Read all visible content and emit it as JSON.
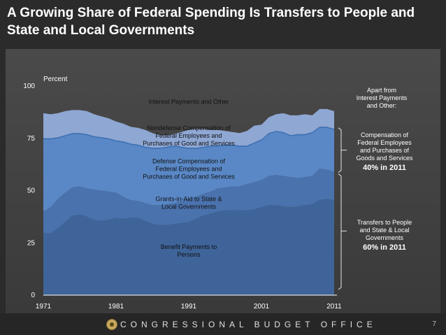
{
  "title": "A Growing Share of Federal Spending Is Transfers to People and State and Local Governments",
  "footer": {
    "org": "CONGRESSIONAL BUDGET OFFICE",
    "page": "7"
  },
  "colors": {
    "benefit": "#3f6499",
    "grants": "#4a72ad",
    "defense": "#5a88c6",
    "nondefense": "#3a74bf",
    "interest": "#8fa7d3",
    "background": "#2b2b2b"
  },
  "chart_data": {
    "type": "area",
    "stacked": true,
    "ylabel": "Percent",
    "ylim": [
      0,
      100
    ],
    "yticks": [
      0,
      25,
      50,
      75,
      100
    ],
    "xticks": [
      1971,
      1981,
      1991,
      2001,
      2011
    ],
    "x": [
      1971,
      1972,
      1973,
      1974,
      1975,
      1976,
      1977,
      1978,
      1979,
      1980,
      1981,
      1982,
      1983,
      1984,
      1985,
      1986,
      1987,
      1988,
      1989,
      1990,
      1991,
      1992,
      1993,
      1994,
      1995,
      1996,
      1997,
      1998,
      1999,
      2000,
      2001,
      2002,
      2003,
      2004,
      2005,
      2006,
      2007,
      2008,
      2009,
      2010,
      2011
    ],
    "series": [
      {
        "name": "Benefit Payments to Persons",
        "values": [
          29.5,
          29.5,
          32,
          35,
          38,
          38.5,
          37.5,
          36,
          35.5,
          36,
          37,
          36.5,
          37,
          37,
          35.5,
          34,
          33.5,
          33.5,
          34,
          34.5,
          35,
          36.5,
          38,
          39,
          40,
          40.5,
          40.5,
          40.5,
          40.5,
          41,
          42,
          43,
          43,
          42.5,
          42,
          42.5,
          43,
          43.5,
          45.5,
          46,
          45.5
        ]
      },
      {
        "name": "Grants-in-Aid to State & Local Governments",
        "values": [
          40,
          42,
          46,
          49,
          51.5,
          52,
          51,
          50.5,
          50,
          49.5,
          49,
          47,
          45.5,
          45,
          44,
          43,
          43,
          43.5,
          44,
          45,
          46,
          47,
          48.5,
          49.5,
          51,
          51.5,
          52,
          52,
          53,
          54,
          55,
          57,
          57.5,
          57,
          56.5,
          56,
          56.5,
          57,
          60.5,
          60,
          59
        ]
      },
      {
        "name": "Defense Compensation of Federal Employees and Purchases of Good and Services",
        "values": [
          74.5,
          74.5,
          75,
          76,
          77,
          77,
          76.5,
          75.5,
          75,
          74.5,
          73.5,
          73,
          72,
          71.5,
          70.5,
          70,
          70,
          70.5,
          71,
          70.5,
          70,
          70,
          70.5,
          71,
          71,
          71.5,
          71.5,
          71,
          71,
          72.5,
          74,
          77,
          78,
          77.5,
          76,
          76.5,
          76.5,
          77.5,
          80,
          80,
          79
        ]
      },
      {
        "name": "Nondefense Compensation of Federal Employees and Purchases of Good and Services",
        "values": [
          75,
          75,
          75.5,
          76.5,
          77.5,
          77.5,
          77,
          76,
          75.5,
          75,
          74,
          73.5,
          72.5,
          72,
          71,
          70.5,
          70.5,
          71,
          71.5,
          71,
          70.5,
          70.5,
          71,
          71.5,
          71.5,
          72,
          72,
          71.5,
          71.5,
          73,
          74.5,
          77.5,
          78.5,
          78,
          76.5,
          77,
          77,
          78,
          80.5,
          80.5,
          79.5
        ]
      },
      {
        "name": "Interest Payments and Other",
        "values": [
          87,
          86.5,
          87,
          88,
          88.5,
          88.5,
          88,
          86.5,
          85.5,
          84.5,
          83,
          82,
          80.5,
          80,
          79,
          77.5,
          76.5,
          76.5,
          77,
          78,
          79,
          79.5,
          79.5,
          79,
          79,
          78.5,
          78,
          77.5,
          78.5,
          81,
          81.5,
          85,
          86.5,
          87,
          86,
          86,
          86.5,
          86,
          89,
          89,
          88
        ]
      }
    ],
    "labels": [
      {
        "text": "Interest Payments and Other",
        "x": 1991,
        "y": 91.5
      },
      {
        "text": "Nondefense Compensation of Federal Employees and Purchases of Good and Services",
        "lines": [
          "Nondefense Compensation of",
          "Federal Employees and",
          "Purchases of Good and Services"
        ],
        "x": 1991,
        "y": 79
      },
      {
        "text": "Defense Compensation of Federal Employees and Purchases of Good and Services",
        "lines": [
          "Defense Compensation of",
          "Federal Employees and",
          "Purchases of Good and Services"
        ],
        "x": 1991,
        "y": 63
      },
      {
        "text": "Grants-in-Aid to State & Local Governments",
        "lines": [
          "Grants-in-Aid to State &",
          "Local Governments"
        ],
        "x": 1991,
        "y": 45
      },
      {
        "text": "Benefit Payments to Persons",
        "lines": [
          "Benefit Payments to",
          "Persons"
        ],
        "x": 1991,
        "y": 22
      }
    ]
  },
  "annotations": {
    "apart": [
      "Apart from",
      "Interest Payments",
      "and Other:"
    ],
    "comp": {
      "lines": [
        "Compensation of",
        "Federal Employees",
        "and Purchases of",
        "Goods and Services"
      ],
      "value": "40% in 2011"
    },
    "transfers": {
      "lines": [
        "Transfers to People",
        "and State & Local",
        "Governments"
      ],
      "value": "60% in 2011"
    }
  }
}
